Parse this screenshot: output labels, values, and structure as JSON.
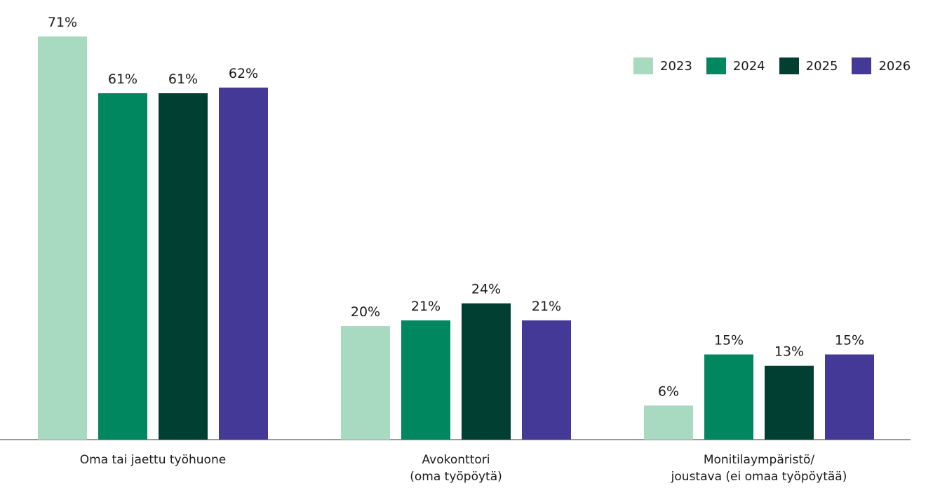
{
  "chart_data": {
    "type": "bar",
    "categories": [
      [
        "Oma tai jaettu työhuone"
      ],
      [
        "Avokonttori",
        "(oma työpöytä)"
      ],
      [
        "Monitilaympäristö/",
        "joustava (ei omaa työpöytää)"
      ]
    ],
    "series": [
      {
        "name": "2023",
        "color": "#a8d9c1",
        "values": [
          71,
          20,
          6
        ],
        "labels": [
          "71%",
          "20%",
          "6%"
        ]
      },
      {
        "name": "2024",
        "color": "#00875f",
        "values": [
          61,
          21,
          15
        ],
        "labels": [
          "61%",
          "21%",
          "15%"
        ]
      },
      {
        "name": "2025",
        "color": "#003f31",
        "values": [
          61,
          24,
          13
        ],
        "labels": [
          "61%",
          "24%",
          "13%"
        ]
      },
      {
        "name": "2026",
        "color": "#453997",
        "values": [
          62,
          21,
          15
        ],
        "labels": [
          "62%",
          "21%",
          "15%"
        ]
      }
    ],
    "ylim": [
      0,
      71
    ],
    "grid": false,
    "legend_position": "top-right"
  }
}
